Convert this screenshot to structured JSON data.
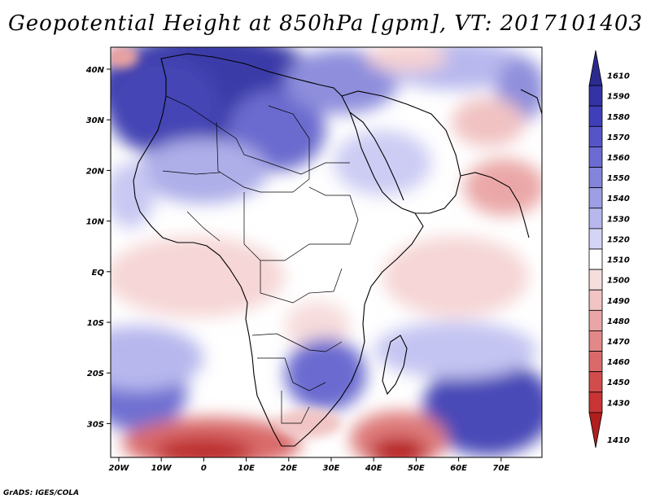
{
  "title": "Geopotential Height at 850hPa [gpm], VT: 2017101403",
  "credit": "GrADS: IGES/COLA",
  "axes": {
    "x_ticks": [
      "20W",
      "10W",
      "0",
      "10E",
      "20E",
      "30E",
      "40E",
      "50E",
      "60E",
      "70E"
    ],
    "y_ticks": [
      "40N",
      "30N",
      "20N",
      "10N",
      "EQ",
      "10S",
      "20S",
      "30S"
    ]
  },
  "colorbar": {
    "levels": [
      {
        "label": "1610",
        "color": "#2b2b8f"
      },
      {
        "label": "1590",
        "color": "#3333a6"
      },
      {
        "label": "1580",
        "color": "#3f3fba"
      },
      {
        "label": "1570",
        "color": "#5555c7"
      },
      {
        "label": "1560",
        "color": "#6b6bd1"
      },
      {
        "label": "1550",
        "color": "#8484db"
      },
      {
        "label": "1540",
        "color": "#9e9ee5"
      },
      {
        "label": "1530",
        "color": "#b8b8ef"
      },
      {
        "label": "1520",
        "color": "#d4d4f7"
      },
      {
        "label": "1510",
        "color": "#ffffff"
      },
      {
        "label": "1500",
        "color": "#f7dede"
      },
      {
        "label": "1490",
        "color": "#f2c4c4"
      },
      {
        "label": "1480",
        "color": "#eaa6a6"
      },
      {
        "label": "1470",
        "color": "#e28888"
      },
      {
        "label": "1460",
        "color": "#da6a6a"
      },
      {
        "label": "1450",
        "color": "#d24c4c"
      },
      {
        "label": "1430",
        "color": "#c93434"
      },
      {
        "label": "1410",
        "color": "#b01e1e"
      }
    ]
  }
}
